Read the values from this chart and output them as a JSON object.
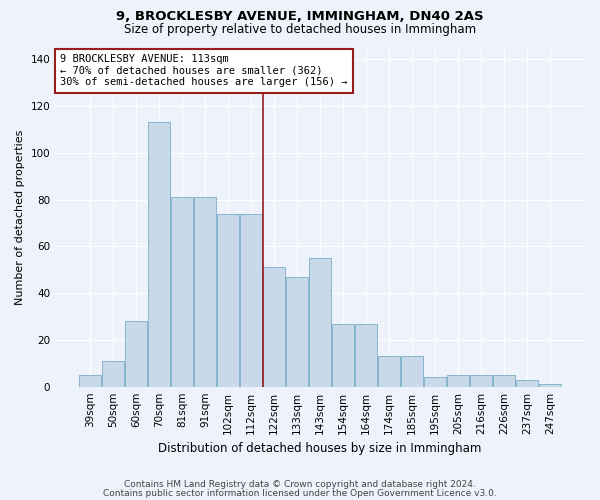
{
  "title1": "9, BROCKLESBY AVENUE, IMMINGHAM, DN40 2AS",
  "title2": "Size of property relative to detached houses in Immingham",
  "xlabel": "Distribution of detached houses by size in Immingham",
  "ylabel": "Number of detached properties",
  "footer1": "Contains HM Land Registry data © Crown copyright and database right 2024.",
  "footer2": "Contains public sector information licensed under the Open Government Licence v3.0.",
  "categories": [
    "39sqm",
    "50sqm",
    "60sqm",
    "70sqm",
    "81sqm",
    "91sqm",
    "102sqm",
    "112sqm",
    "122sqm",
    "133sqm",
    "143sqm",
    "154sqm",
    "164sqm",
    "174sqm",
    "185sqm",
    "195sqm",
    "205sqm",
    "216sqm",
    "226sqm",
    "237sqm",
    "247sqm"
  ],
  "bar_heights": [
    5,
    11,
    28,
    113,
    81,
    81,
    74,
    74,
    51,
    47,
    55,
    27,
    27,
    13,
    13,
    4,
    5,
    5,
    5,
    3,
    1
  ],
  "bar_color_fill": "#c8d9ea",
  "bar_color_edge": "#7aaec8",
  "annotation_line1": "9 BROCKLESBY AVENUE: 113sqm",
  "annotation_line2": "← 70% of detached houses are smaller (362)",
  "annotation_line3": "30% of semi-detached houses are larger (156) →",
  "vline_index": 7,
  "vline_color": "#9b1c1c",
  "annotation_box_edge_color": "#9b1c1c",
  "bg_color": "#eef2fb",
  "grid_color": "#ffffff",
  "ylim": [
    0,
    145
  ],
  "yticks": [
    0,
    20,
    40,
    60,
    80,
    100,
    120,
    140
  ],
  "title1_fontsize": 9.5,
  "title2_fontsize": 8.5,
  "ylabel_fontsize": 8,
  "xlabel_fontsize": 8.5,
  "tick_fontsize": 7.5,
  "footer_fontsize": 6.5
}
